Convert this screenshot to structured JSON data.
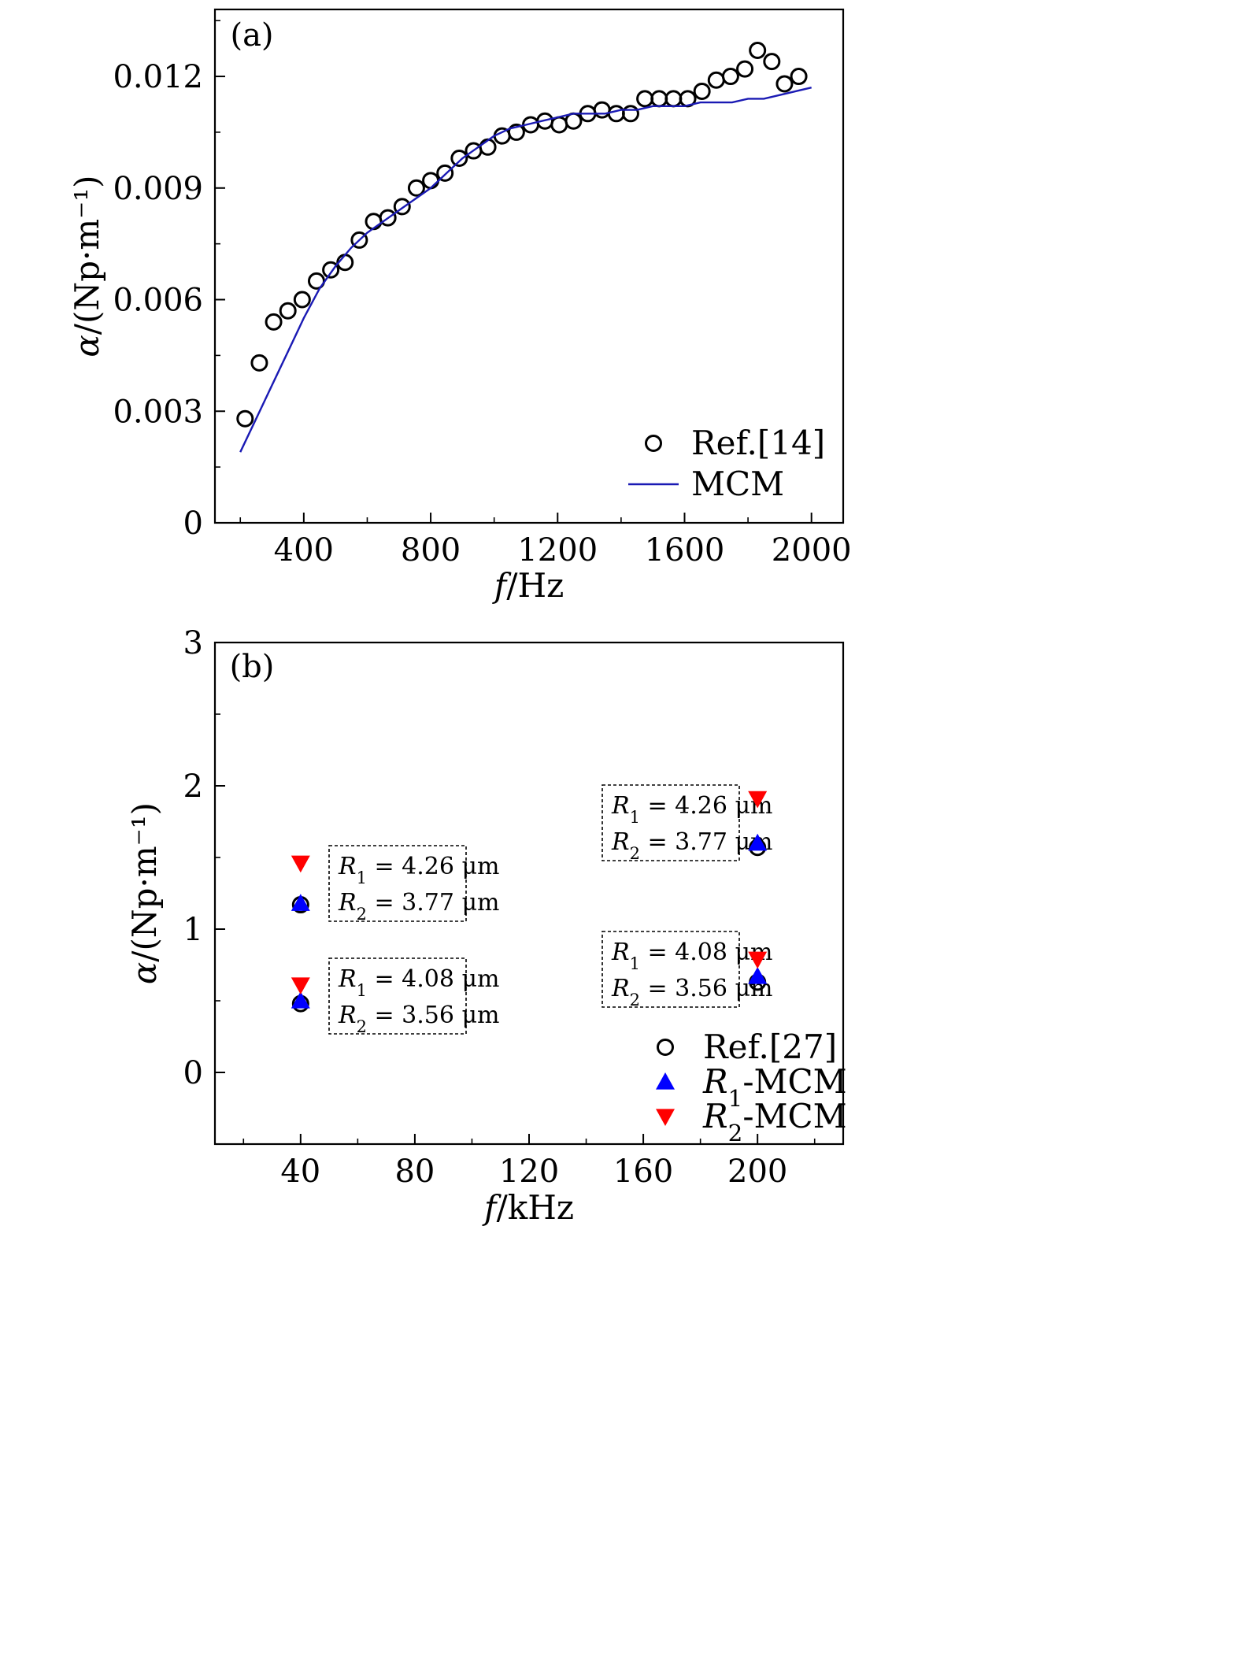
{
  "chart_data": [
    {
      "panel": "(a)",
      "type": "scatter+line",
      "title": "",
      "xlabel": "f/Hz",
      "ylabel": "α/(Np·m⁻¹)",
      "xlim": [
        120,
        2100
      ],
      "ylim": [
        0,
        0.0138
      ],
      "xticks": [
        400,
        800,
        1200,
        1600,
        2000
      ],
      "xtick_labels": [
        "400",
        "800",
        "1200",
        "1600",
        "2000"
      ],
      "yticks": [
        0,
        0.003,
        0.006,
        0.009,
        0.012
      ],
      "ytick_labels": [
        "0",
        "0.003",
        "0.006",
        "0.009",
        "0.012"
      ],
      "legend_position": "bottom-right",
      "series": [
        {
          "name": "Ref.[14]",
          "marker": "open-circle",
          "color": "#000000",
          "x": [
            215,
            260,
            305,
            350,
            395,
            440,
            485,
            530,
            575,
            620,
            665,
            710,
            755,
            800,
            845,
            890,
            935,
            980,
            1025,
            1070,
            1115,
            1160,
            1205,
            1250,
            1295,
            1340,
            1385,
            1430,
            1475,
            1520,
            1565,
            1610,
            1655,
            1700,
            1745,
            1790,
            1830,
            1875,
            1915,
            1960
          ],
          "y": [
            0.0028,
            0.0043,
            0.0054,
            0.0057,
            0.006,
            0.0065,
            0.0068,
            0.007,
            0.0076,
            0.0081,
            0.0082,
            0.0085,
            0.009,
            0.0092,
            0.0094,
            0.0098,
            0.01,
            0.0101,
            0.0104,
            0.0105,
            0.0107,
            0.0108,
            0.0107,
            0.0108,
            0.011,
            0.0111,
            0.011,
            0.011,
            0.0114,
            0.0114,
            0.0114,
            0.0114,
            0.0116,
            0.0119,
            0.012,
            0.0122,
            0.0127,
            0.0124,
            0.0118,
            0.012
          ]
        },
        {
          "name": "MCM",
          "marker": "line",
          "color": "#1a1ab4",
          "x": [
            200,
            250,
            300,
            350,
            400,
            450,
            500,
            550,
            600,
            650,
            700,
            750,
            800,
            850,
            900,
            950,
            1000,
            1050,
            1100,
            1150,
            1200,
            1250,
            1300,
            1350,
            1400,
            1450,
            1500,
            1550,
            1600,
            1650,
            1700,
            1750,
            1800,
            1850,
            1900,
            1950,
            2000
          ],
          "y": [
            0.0019,
            0.0028,
            0.0037,
            0.0046,
            0.0055,
            0.0063,
            0.0069,
            0.0074,
            0.0078,
            0.0081,
            0.0084,
            0.0087,
            0.009,
            0.0094,
            0.0098,
            0.0101,
            0.0104,
            0.0106,
            0.0107,
            0.0108,
            0.0109,
            0.011,
            0.011,
            0.011,
            0.0111,
            0.0111,
            0.0112,
            0.0112,
            0.0112,
            0.0113,
            0.0113,
            0.0113,
            0.0114,
            0.0114,
            0.0115,
            0.0116,
            0.0117
          ]
        }
      ]
    },
    {
      "panel": "(b)",
      "type": "scatter",
      "title": "",
      "xlabel": "f/kHz",
      "ylabel": "α/(Np·m⁻¹)",
      "xlim": [
        10,
        230
      ],
      "ylim": [
        -0.5,
        3
      ],
      "xticks": [
        40,
        80,
        120,
        160,
        200
      ],
      "xtick_labels": [
        "40",
        "80",
        "120",
        "160",
        "200"
      ],
      "yticks": [
        0,
        1,
        2,
        3
      ],
      "ytick_labels": [
        "0",
        "1",
        "2",
        "3"
      ],
      "legend_position": "bottom-right",
      "series": [
        {
          "name": "Ref.[27]",
          "marker": "open-circle",
          "color": "#000000",
          "x": [
            40,
            40,
            200,
            200
          ],
          "y": [
            1.17,
            0.48,
            1.57,
            0.63
          ]
        },
        {
          "name": "R1-MCM",
          "marker": "triangle-up",
          "color": "#0000ff",
          "x": [
            40,
            40,
            200,
            200
          ],
          "y": [
            1.18,
            0.5,
            1.6,
            0.67
          ]
        },
        {
          "name": "R2-MCM",
          "marker": "triangle-down",
          "color": "#ff0000",
          "x": [
            40,
            40,
            200,
            200
          ],
          "y": [
            1.46,
            0.61,
            1.91,
            0.79
          ]
        }
      ],
      "annotations": [
        {
          "r1": "R1 = 4.26 μm",
          "r2": "R2 = 3.77 μm",
          "anchor_x": 40,
          "anchor_y": 1.17
        },
        {
          "r1": "R1 = 4.08 μm",
          "r2": "R2 = 3.56 μm",
          "anchor_x": 40,
          "anchor_y": 0.48
        },
        {
          "r1": "R1 = 4.26 μm",
          "r2": "R2 = 3.77 μm",
          "anchor_x": 200,
          "anchor_y": 1.57
        },
        {
          "r1": "R1 = 4.08 μm",
          "r2": "R2 = 3.56 μm",
          "anchor_x": 200,
          "anchor_y": 0.63
        }
      ]
    }
  ]
}
